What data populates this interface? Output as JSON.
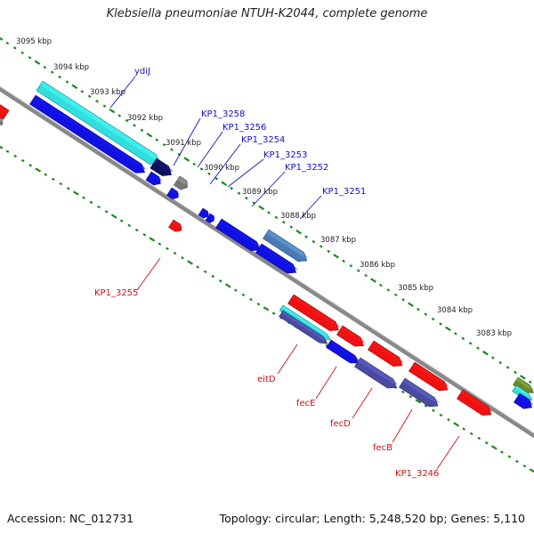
{
  "title": "Klebsiella pneumoniae NTUH-K2044, complete genome",
  "accession": "Accession: NC_012731",
  "summary": "Topology: circular; Length: 5,248,520 bp; Genes: 5,110",
  "ruler_labels": [
    "3095 kbp",
    "3094 kbp",
    "3093 kbp",
    "3092 kbp",
    "3091 kbp",
    "3090 kbp",
    "3089 kbp",
    "3088 kbp",
    "3087 kbp",
    "3086 kbp",
    "3085 kbp",
    "3084 kbp",
    "3083 kbp"
  ],
  "gene_labels": {
    "forward": [
      "ydiJ",
      "KP1_3258",
      "KP1_3256",
      "KP1_3254",
      "KP1_3253",
      "KP1_3252",
      "KP1_3251"
    ],
    "reverse": [
      "KP1_3255",
      "eitD",
      "fecE",
      "fecD",
      "fecB",
      "KP1_3246"
    ]
  },
  "colors": {
    "forward_label": "#1111cc",
    "reverse_label": "#cc1111",
    "backbone": "#888888",
    "tick": "#1a8a1a",
    "cds_blue": "#1010e0",
    "cds_red": "#ee1111",
    "cds_cyan": "#33dddd",
    "cds_navy": "#101060",
    "cds_slate": "#4a4aa0",
    "cds_steel": "#4a7ab0",
    "cds_gray": "#777777",
    "cds_olive": "#6a8a2a"
  }
}
